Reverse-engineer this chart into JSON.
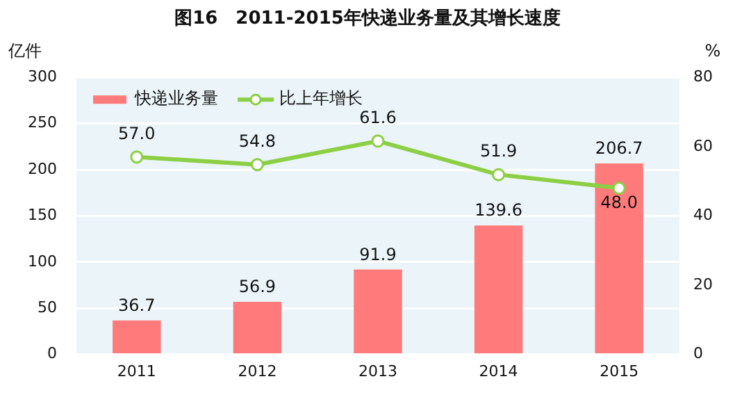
{
  "chart_data": {
    "type": "bar",
    "title": "图16　2011-2015年快递业务量及其增长速度",
    "ylabel": "亿件",
    "y2label": "%",
    "categories": [
      "2011",
      "2012",
      "2013",
      "2014",
      "2015"
    ],
    "series": [
      {
        "name": "快递业务量",
        "color": "#ff7b7b",
        "values": [
          36.7,
          56.9,
          91.9,
          139.6,
          206.7
        ],
        "value_labels": [
          "36.7",
          "56.9",
          "91.9",
          "139.6",
          "206.7"
        ]
      },
      {
        "name": "比上年增长",
        "type": "line",
        "axis": "y2",
        "color": "#8ccf45",
        "values": [
          57.0,
          54.8,
          61.6,
          51.9,
          48.0
        ],
        "value_labels": [
          "57.0",
          "54.8",
          "61.6",
          "51.9",
          "48.0"
        ]
      }
    ],
    "ylim": [
      0,
      300
    ],
    "yticks": [
      0,
      50,
      100,
      150,
      200,
      250,
      300
    ],
    "y2lim": [
      0,
      80
    ],
    "y2ticks": [
      0,
      20,
      40,
      60,
      80
    ],
    "grid": "y",
    "legend": "top left",
    "marker": "circle",
    "line_style": "solid"
  }
}
